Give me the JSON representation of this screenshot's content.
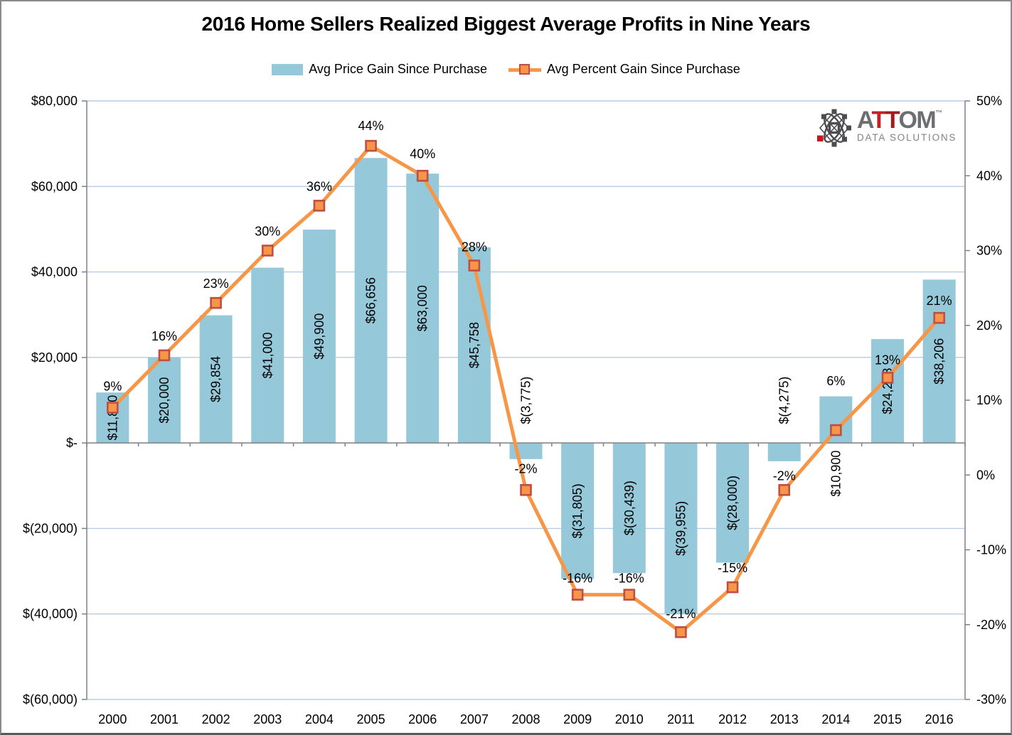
{
  "chart": {
    "title": "2016 Home Sellers Realized Biggest Average Profits in Nine Years",
    "legend": [
      {
        "label": "Avg Price Gain Since Purchase"
      },
      {
        "label": "Avg Percent Gain Since Purchase"
      }
    ]
  },
  "chart_data": {
    "type": "bar+line",
    "title": "2016 Home Sellers Realized Biggest Average Profits in Nine Years",
    "categories": [
      "2000",
      "2001",
      "2002",
      "2003",
      "2004",
      "2005",
      "2006",
      "2007",
      "2008",
      "2009",
      "2010",
      "2011",
      "2012",
      "2013",
      "2014",
      "2015",
      "2016"
    ],
    "series": [
      {
        "name": "Avg Price Gain Since Purchase",
        "type": "bar",
        "axis": "left",
        "values": [
          11800,
          20000,
          29854,
          41000,
          49900,
          66656,
          63000,
          45758,
          -3775,
          -31805,
          -30439,
          -39955,
          -28000,
          -4275,
          10900,
          24288,
          38206
        ],
        "labels": [
          "$11,800",
          "$20,000",
          "$29,854",
          "$41,000",
          "$49,900",
          "$66,656",
          "$63,000",
          "$45,758",
          "$(3,775)",
          "$(31,805)",
          "$(30,439)",
          "$(39,955)",
          "$(28,000)",
          "$(4,275)",
          "$10,900",
          "$24,288",
          "$38,206"
        ],
        "label_placement": [
          "center",
          "center",
          "center",
          "center",
          "center",
          "center",
          "center",
          "center",
          "above-axis",
          "center",
          "center",
          "center",
          "center",
          "above-axis",
          "below-axis",
          "center",
          "center"
        ]
      },
      {
        "name": "Avg Percent Gain Since Purchase",
        "type": "line",
        "axis": "right",
        "values": [
          9,
          16,
          23,
          30,
          36,
          44,
          40,
          28,
          -2,
          -16,
          -16,
          -21,
          -15,
          -2,
          6,
          13,
          21
        ],
        "labels": [
          "9%",
          "16%",
          "23%",
          "30%",
          "36%",
          "44%",
          "40%",
          "28%",
          "-2%",
          "-16%",
          "-16%",
          "-21%",
          "-15%",
          "-2%",
          "6%",
          "13%",
          "21%"
        ],
        "label_dy": [
          -24,
          -21,
          -21,
          -21,
          -21,
          -22,
          -25,
          -20,
          -24,
          -17,
          -17,
          -20,
          -21,
          -14,
          -63,
          -19,
          -18
        ]
      }
    ],
    "left_axis": {
      "min": -60000,
      "max": 80000,
      "ticks": [
        {
          "label": "$80,000",
          "value": 80000
        },
        {
          "label": "$60,000",
          "value": 60000
        },
        {
          "label": "$40,000",
          "value": 40000
        },
        {
          "label": "$20,000",
          "value": 20000
        },
        {
          "label": "$-",
          "value": 0
        },
        {
          "label": "$(20,000)",
          "value": -20000
        },
        {
          "label": "$(40,000)",
          "value": -40000
        },
        {
          "label": "$(60,000)",
          "value": -60000
        }
      ]
    },
    "right_axis": {
      "min": -30,
      "max": 50,
      "ticks": [
        {
          "label": "50%",
          "value": 50
        },
        {
          "label": "40%",
          "value": 40
        },
        {
          "label": "30%",
          "value": 30
        },
        {
          "label": "20%",
          "value": 20
        },
        {
          "label": "10%",
          "value": 10
        },
        {
          "label": "0%",
          "value": 0
        },
        {
          "label": "-10%",
          "value": -10
        },
        {
          "label": "-20%",
          "value": -20
        },
        {
          "label": "-30%",
          "value": -30
        }
      ]
    },
    "grid": true,
    "legend_position": "top",
    "colors": {
      "bar": "#95C8D8",
      "line": "#F79646",
      "marker_fill": "#F79646",
      "marker_border": "#BF4E45",
      "gridline": "#B8CCE4",
      "axis": "#808080",
      "text": "#000000"
    }
  },
  "logo": {
    "segments": [
      {
        "text": "A",
        "color": "#6D6E71"
      },
      {
        "text": "T",
        "color": "#C42126"
      },
      {
        "text": "T",
        "color": "#A6191E"
      },
      {
        "text": "OM",
        "color": "#6D6E71"
      }
    ],
    "tm": "™",
    "subtitle": "DATA SOLUTIONS",
    "subtitle_color": "#808285",
    "icon_gray": "#4D4D4F",
    "icon_red": "#C4161C"
  }
}
